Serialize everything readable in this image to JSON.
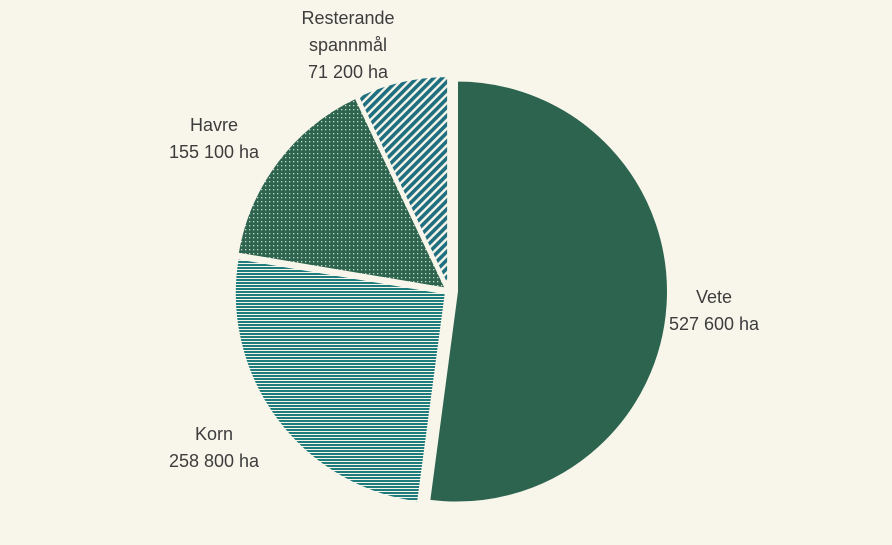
{
  "chart_data": {
    "type": "pie",
    "title": "",
    "unit": "ha",
    "colors": {
      "background": "#f8f6ea",
      "vete": "#2d6450",
      "korn": "#1f7c7c",
      "havre": "#2d6450",
      "resterande": "#1f6f80",
      "text": "#3d3d3d"
    },
    "slices": [
      {
        "key": "vete",
        "name": "Vete",
        "name_line2": "",
        "value": 527600,
        "value_label": "527 600 ha",
        "pattern": "solid"
      },
      {
        "key": "korn",
        "name": "Korn",
        "name_line2": "",
        "value": 258800,
        "value_label": "258 800 ha",
        "pattern": "horizontal-lines"
      },
      {
        "key": "havre",
        "name": "Havre",
        "name_line2": "",
        "value": 155100,
        "value_label": "155 100 ha",
        "pattern": "dots"
      },
      {
        "key": "resterande",
        "name": "Resterande",
        "name_line2": "spannmål",
        "value": 71200,
        "value_label": "71 200 ha",
        "pattern": "diagonal-stripes"
      }
    ]
  }
}
